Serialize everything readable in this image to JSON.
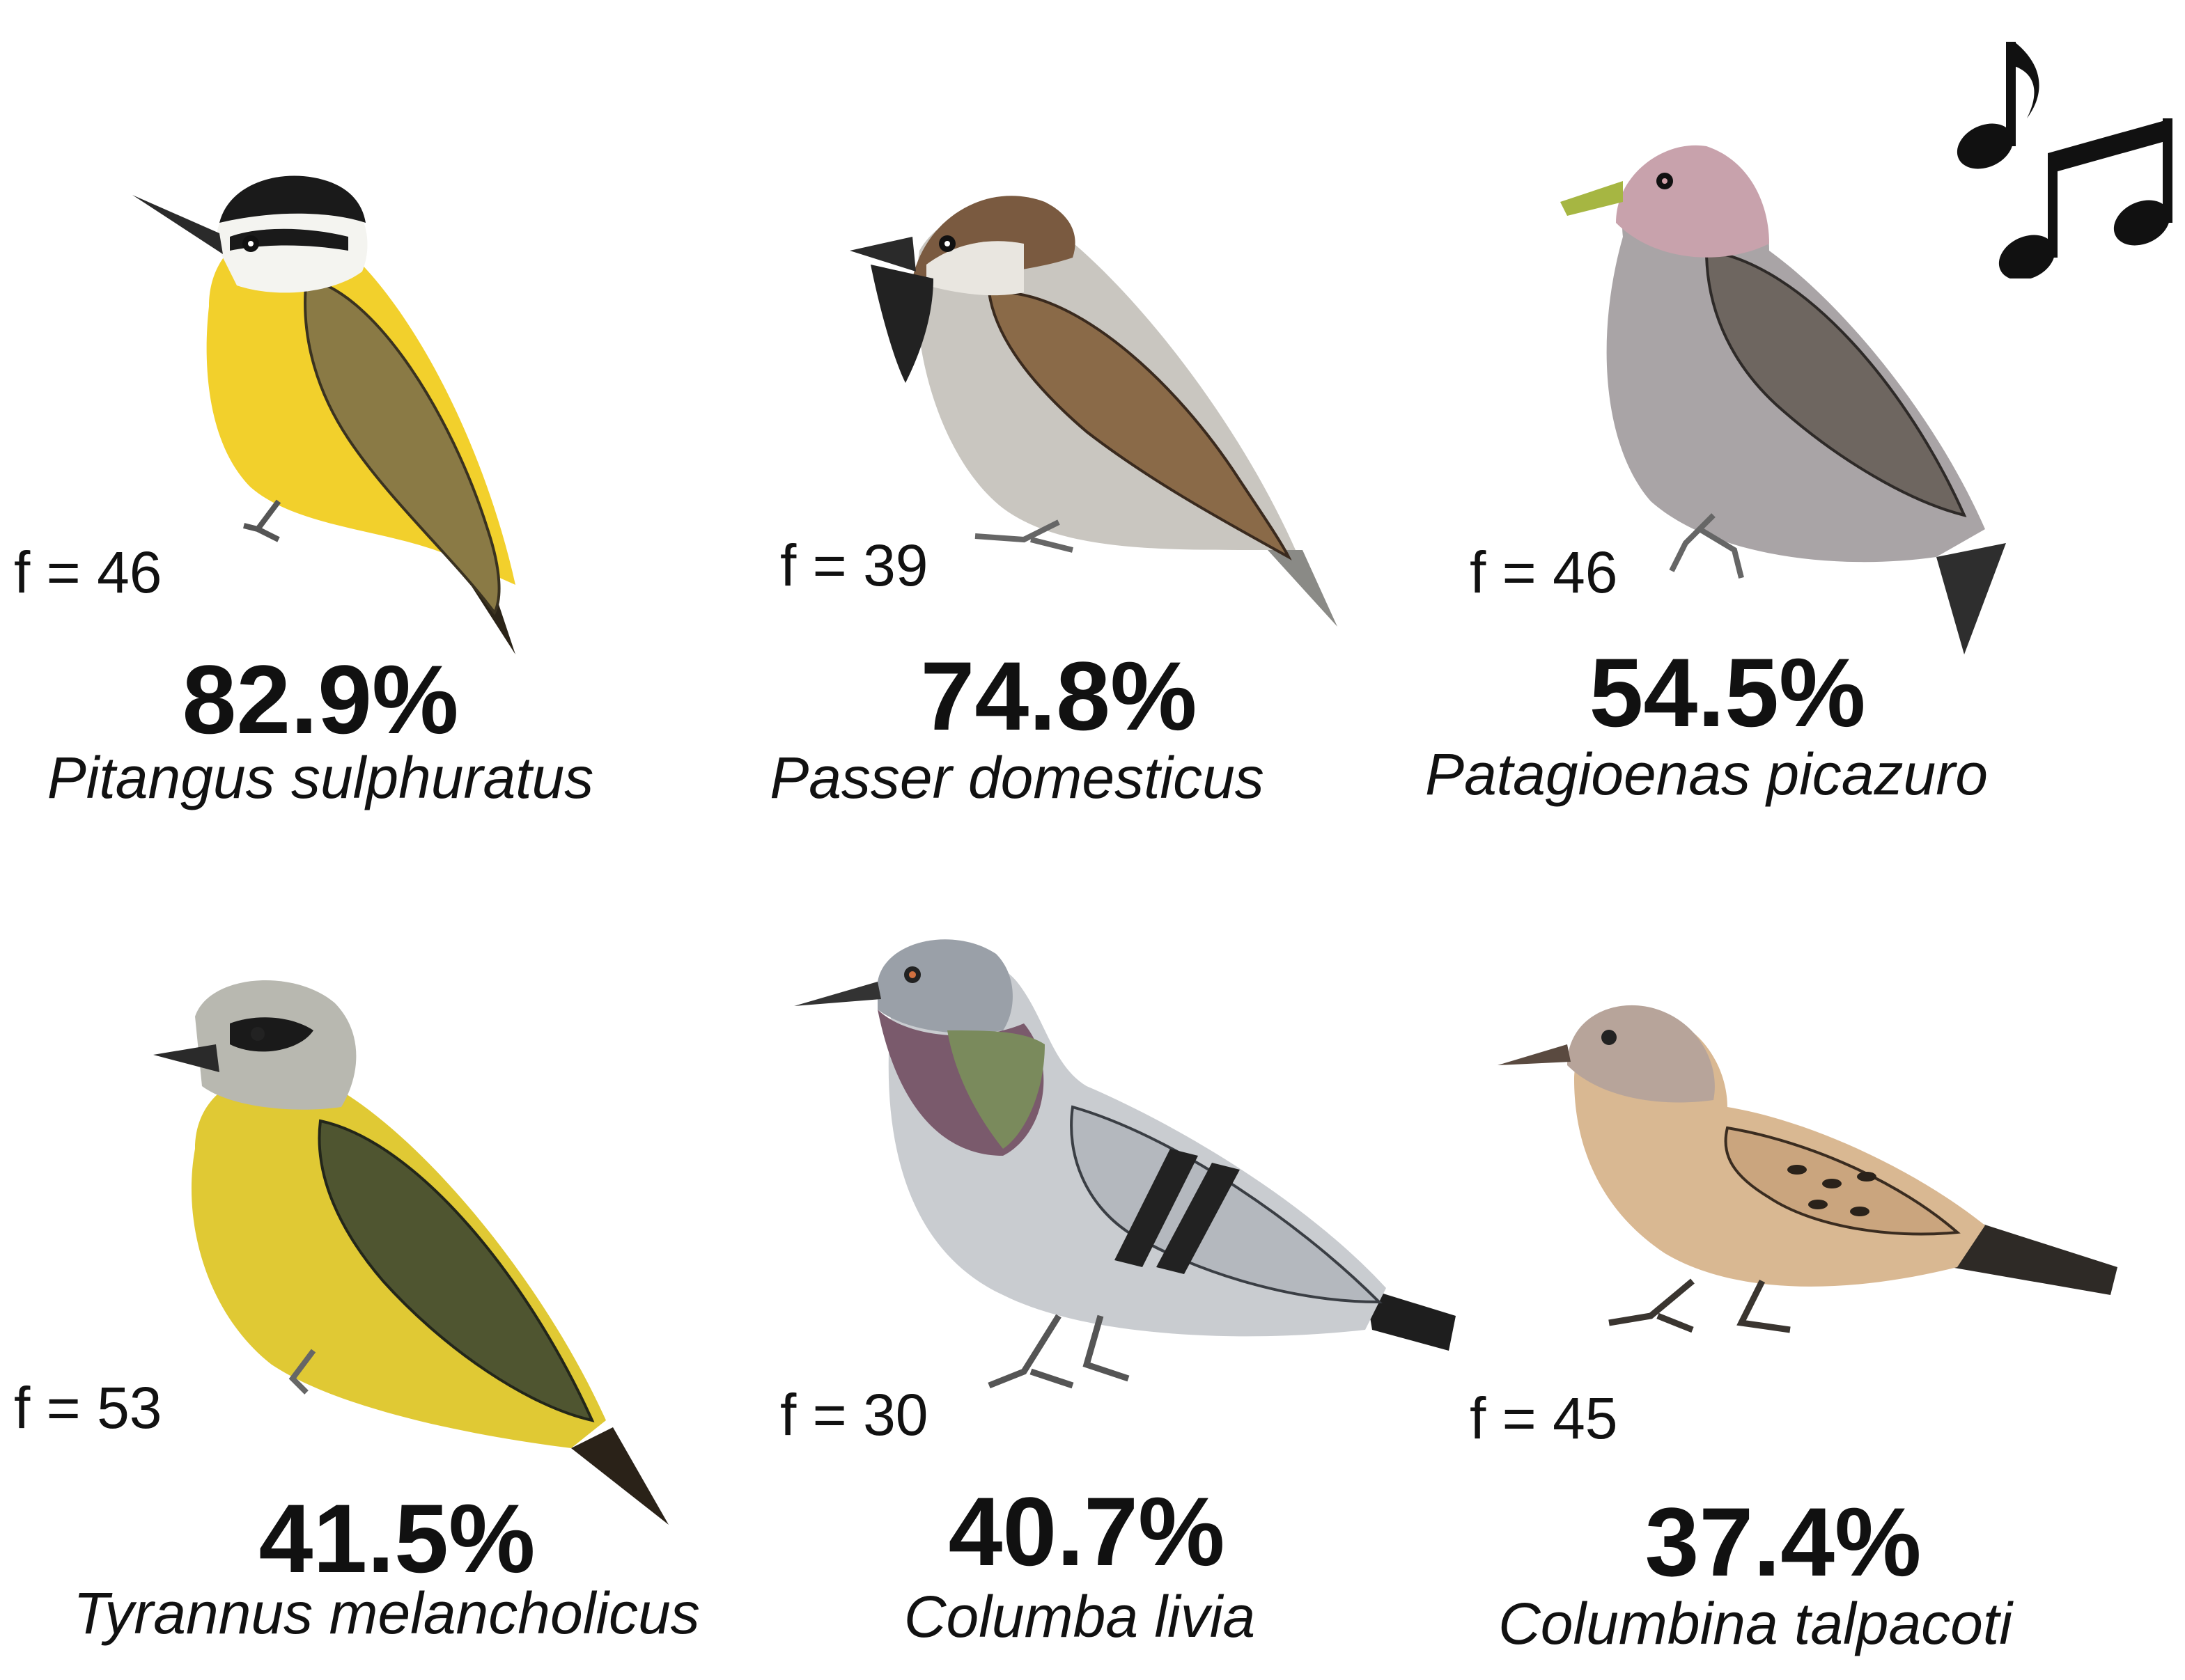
{
  "music_icon": "music-notes-icon",
  "birds": [
    {
      "f": "f = 46",
      "pct": "82.9%",
      "species": "Pitangus sulphuratus",
      "colors": {
        "belly": "#f2d02c",
        "back": "#8a7a45",
        "head": "#1a1a1a",
        "throat": "#f4f4f0"
      }
    },
    {
      "f": "f = 39",
      "pct": "74.8%",
      "species": "Passer domesticus",
      "colors": {
        "belly": "#c9c6c0",
        "back": "#8a6a48",
        "head": "#7a5a40",
        "throat": "#222222"
      }
    },
    {
      "f": "f = 46",
      "pct": "54.5%",
      "species": "Patagioenas picazuro",
      "colors": {
        "belly": "#a9a4a6",
        "back": "#6e6660",
        "head": "#c8a2ac",
        "throat": "#b895a0"
      }
    },
    {
      "f": "f = 53",
      "pct": "41.5%",
      "species": "Tyrannus melancholicus",
      "colors": {
        "belly": "#e0c934",
        "back": "#4f5530",
        "head": "#b8b8b0",
        "throat": "#9c9c94"
      }
    },
    {
      "f": "f = 30",
      "pct": "40.7%",
      "species": "Columba livia",
      "colors": {
        "belly": "#c9ccd0",
        "back": "#b4b8be",
        "head": "#9aa0a8",
        "throat": "#7a8a5c"
      }
    },
    {
      "f": "f = 45",
      "pct": "37.4%",
      "species": "Columbina talpacoti",
      "colors": {
        "belly": "#d9b892",
        "back": "#caa57e",
        "head": "#b7a49a",
        "throat": "#a99285"
      }
    }
  ]
}
